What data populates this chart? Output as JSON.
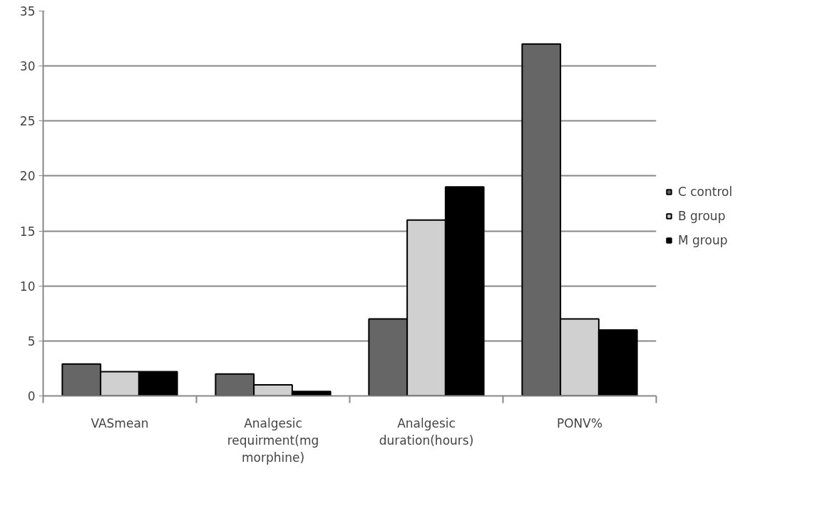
{
  "chart_data": {
    "type": "bar",
    "categories": [
      "VASmean",
      "Analgesic requirment(mg morphine)",
      "Analgesic duration(hours)",
      "PONV%"
    ],
    "series": [
      {
        "name": "C control",
        "color": "#666666",
        "values": [
          2.9,
          2.0,
          7,
          32
        ]
      },
      {
        "name": "B group",
        "color": "#d0d0d0",
        "values": [
          2.2,
          1.0,
          16,
          7
        ]
      },
      {
        "name": "M group",
        "color": "#000000",
        "values": [
          2.2,
          0.4,
          19,
          6
        ]
      }
    ],
    "ylim": [
      0,
      35
    ],
    "yticks": [
      0,
      5,
      10,
      15,
      20,
      25,
      30,
      35
    ],
    "grid": "y",
    "legend": "right"
  }
}
